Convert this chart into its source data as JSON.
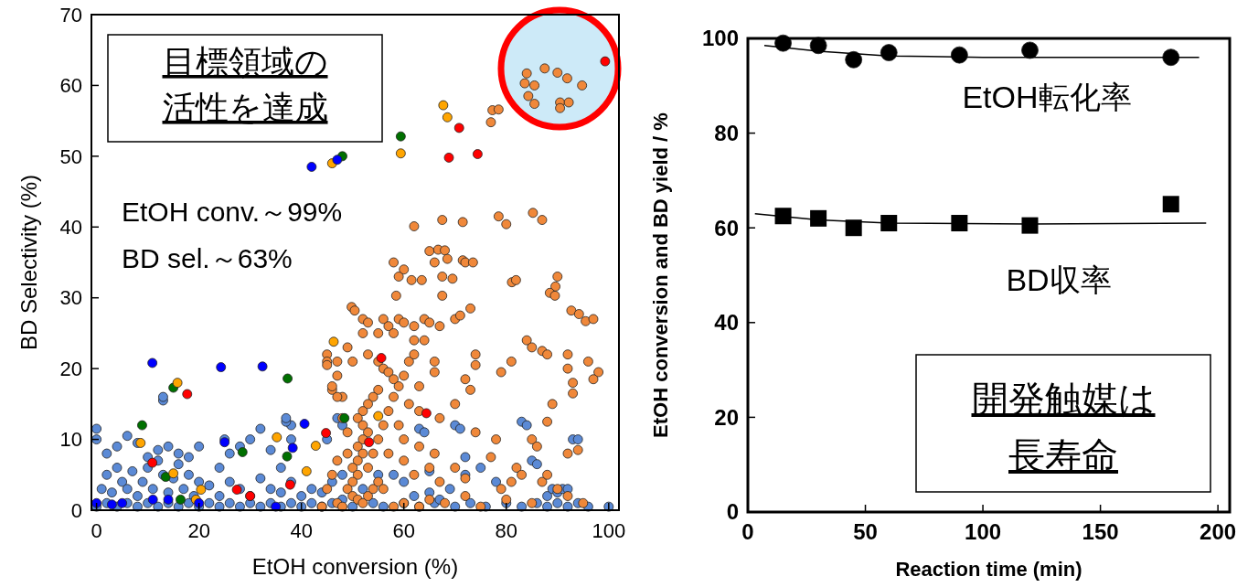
{
  "chart_data": [
    {
      "type": "scatter",
      "xlabel": "EtOH conversion (%)",
      "ylabel": "BD Selectivity (%)",
      "xlim": [
        -1,
        102
      ],
      "ylim": [
        0,
        70
      ],
      "xticks": [
        0,
        20,
        40,
        60,
        80,
        100
      ],
      "yticks": [
        0,
        10,
        20,
        30,
        40,
        50,
        60,
        70
      ],
      "marker": "circle",
      "annotations": [
        "目標領域の活性を達成",
        "EtOH conv.～99%",
        "BD sel.～63%"
      ],
      "series": [
        {
          "color": "#5b8ad6",
          "x": [
            0,
            2,
            4,
            6,
            8,
            10,
            12,
            14,
            16,
            18,
            20,
            22,
            24,
            26,
            28,
            30,
            32,
            34,
            36,
            38,
            40,
            42,
            44,
            46,
            50,
            54,
            56,
            60,
            63,
            66,
            70,
            73,
            76,
            80,
            83,
            86,
            88,
            90,
            92,
            94,
            96,
            100,
            1,
            2,
            3,
            4,
            5,
            6,
            7,
            8,
            9,
            10,
            11,
            12,
            13,
            14,
            15,
            16,
            17,
            18,
            19,
            20,
            2,
            4,
            6,
            8,
            10,
            12,
            14,
            16,
            18,
            20,
            22,
            24,
            26,
            28,
            30,
            32,
            34,
            36,
            38,
            40,
            42,
            24,
            26,
            28,
            30,
            32,
            34,
            38,
            38,
            13,
            13,
            36,
            44,
            46,
            45,
            48,
            47,
            48,
            0,
            0,
            37,
            37,
            25,
            60,
            65,
            69,
            72,
            75,
            78,
            70,
            71,
            72,
            88,
            89,
            90,
            91,
            92,
            85,
            86,
            83,
            84,
            93,
            94,
            63,
            64,
            58,
            62,
            65,
            67,
            55,
            52,
            48
          ],
          "values": [
            0.5,
            1,
            0.5,
            1,
            0.5,
            1,
            0.5,
            1,
            0.5,
            1,
            0.5,
            1,
            0.5,
            1,
            0.5,
            1,
            0.5,
            1,
            0.5,
            1,
            0.5,
            1,
            0.5,
            1,
            0.5,
            1,
            0.5,
            1,
            0.5,
            1,
            0.5,
            1,
            0.5,
            1,
            0.5,
            1,
            0.5,
            1,
            0.5,
            1,
            0.5,
            0.5,
            3,
            5,
            2.5,
            6,
            4,
            3,
            5.5,
            2,
            4,
            6,
            3,
            7,
            5,
            2.5,
            4.5,
            6.5,
            3,
            5,
            2,
            4,
            8,
            9,
            10.5,
            9.5,
            7.5,
            8.5,
            9,
            8,
            7.5,
            9,
            3.5,
            2,
            4,
            3,
            2,
            4.5,
            3,
            2.5,
            4,
            2,
            3,
            6,
            8,
            9,
            10,
            11.5,
            8.5,
            10,
            12,
            15.5,
            16,
            6,
            2.5,
            4,
            10,
            12,
            13,
            1.5,
            11.5,
            10,
            12.5,
            13,
            10,
            4,
            5.5,
            3,
            7.5,
            6,
            4,
            12,
            11.5,
            5,
            2,
            3,
            2.5,
            3,
            3,
            7,
            6.5,
            12.5,
            12,
            10,
            10,
            11.5,
            11,
            5,
            2,
            2.5,
            1.5,
            5,
            3,
            5
          ]
        },
        {
          "color": "#f0883a",
          "x": [
            84,
            87.5,
            90,
            91.9,
            94.8,
            83.6,
            85.5,
            84.3,
            85.5,
            90.5,
            90.5,
            92.2,
            77.3,
            77,
            78.5,
            78.5,
            80,
            85.2,
            87,
            81.1,
            81.9,
            90,
            89.6,
            88.5,
            89.5,
            92.7,
            94.2,
            95.5,
            97,
            49.8,
            50.4,
            62,
            67.5,
            71.5,
            65,
            66.7,
            68,
            71.5,
            58,
            60,
            66,
            68.5,
            72,
            73.5,
            59,
            61.5,
            63.5,
            67.5,
            69.5,
            58.5,
            67.5,
            52,
            53,
            56,
            57,
            59,
            60,
            62,
            64,
            65,
            67,
            70,
            71,
            73,
            52,
            55,
            58,
            62,
            49,
            50,
            53,
            55,
            56,
            57,
            58,
            59,
            55,
            54,
            53,
            52,
            51,
            52,
            53,
            52,
            51,
            52,
            51,
            50,
            51,
            50,
            49,
            50,
            51,
            52,
            53,
            54,
            55,
            56,
            53,
            54,
            55,
            56,
            57,
            58,
            60,
            61,
            62,
            64,
            47,
            47,
            46,
            48,
            48,
            49,
            49,
            47,
            46,
            45,
            47,
            44,
            48,
            58,
            60,
            63,
            65,
            66,
            63,
            66,
            72,
            73,
            70,
            74,
            74,
            79,
            81,
            84,
            85,
            87,
            88,
            92,
            92,
            93,
            93,
            89,
            96,
            98,
            97,
            88,
            78,
            77,
            70,
            72,
            66,
            63,
            60,
            59,
            63,
            61,
            67,
            74,
            85,
            86,
            92,
            94,
            82,
            83,
            81,
            79,
            87,
            88,
            90,
            72,
            68,
            75,
            80,
            85,
            92,
            95,
            62,
            65,
            67,
            60,
            57,
            45,
            45,
            45,
            46,
            47
          ],
          "values": [
            61.7,
            62.4,
            61.8,
            61,
            60,
            60.3,
            60,
            58.5,
            57.4,
            57.6,
            56.8,
            57.6,
            56.5,
            54.8,
            56.6,
            41.5,
            40.4,
            42,
            41,
            32.2,
            32.5,
            33,
            31.6,
            30.7,
            30.3,
            28.2,
            27.7,
            26.7,
            27,
            28.7,
            28.2,
            40.1,
            41,
            40.7,
            36.6,
            36.8,
            36.7,
            35.3,
            35,
            34,
            35,
            35.5,
            35,
            35,
            33,
            32.5,
            32.5,
            33,
            32.7,
            30.3,
            30.3,
            27,
            26.5,
            27,
            26,
            27,
            26.5,
            26,
            27,
            26.5,
            26,
            27,
            27.5,
            28.5,
            25,
            25,
            25,
            24,
            23,
            21,
            22,
            21,
            20,
            19.5,
            18.5,
            17.5,
            17,
            16,
            15,
            14,
            13,
            12,
            11,
            10,
            9,
            8,
            7,
            6,
            5,
            4,
            3,
            2,
            1.5,
            1,
            2,
            3,
            4,
            3,
            6,
            8,
            10,
            12,
            14,
            16,
            19,
            21,
            22,
            24,
            21,
            19,
            17,
            16,
            13,
            11,
            8,
            7,
            5,
            3,
            1,
            0.5,
            0.5,
            0.5,
            1,
            0.5,
            1.5,
            21,
            17.5,
            19.5,
            18.5,
            17,
            15,
            22,
            20.5,
            19.5,
            21,
            24,
            23,
            22.5,
            22,
            22,
            20,
            18,
            16.5,
            15,
            21,
            19.5,
            18.5,
            12.5,
            10,
            7.5,
            6,
            4.5,
            8,
            9,
            10,
            12,
            14,
            15,
            13,
            11,
            10,
            9,
            8,
            8.5,
            6,
            5,
            4,
            3,
            4,
            5,
            3,
            2,
            1,
            0.5,
            1.5,
            1,
            2,
            1,
            5,
            6,
            4,
            7,
            8,
            22,
            21,
            20.5,
            17.5,
            16
          ]
        },
        {
          "color": "#ff0000",
          "x": [
            17.7,
            44.8,
            10.9,
            27.4,
            37.8,
            30,
            55.6,
            64.4,
            53.2,
            70.8,
            68.8,
            74.4,
            99.3
          ],
          "values": [
            16.4,
            10.9,
            6.7,
            2.9,
            3.6,
            2,
            21.5,
            13.7,
            9.6,
            54,
            49.8,
            50.3,
            63.4
          ]
        },
        {
          "color": "#007000",
          "x": [
            37.3,
            15,
            8.9,
            48.4,
            28.5,
            37.2,
            13.5,
            16.4,
            59.4,
            48
          ],
          "values": [
            18.6,
            17.3,
            12,
            13,
            8.2,
            7.6,
            4.7,
            1.5,
            52.8,
            50
          ]
        },
        {
          "color": "#ffa500",
          "x": [
            15.8,
            8.6,
            35.2,
            42.8,
            15,
            20.4,
            19.4,
            46,
            67.7,
            68.5,
            59.4,
            46.3,
            41,
            55
          ],
          "values": [
            18,
            9.5,
            10.3,
            9.1,
            5.2,
            2.9,
            1.5,
            49,
            57.2,
            55.5,
            50.4,
            23.8,
            5.5,
            13.3
          ]
        },
        {
          "color": "#0000ff",
          "x": [
            10.9,
            24.3,
            32.4,
            40.6,
            25,
            38.3,
            0,
            3,
            5,
            11,
            14,
            20,
            35,
            47,
            42
          ],
          "values": [
            20.8,
            20.2,
            20.3,
            12.2,
            9.6,
            8.8,
            1,
            0.8,
            1,
            1.5,
            1.5,
            1,
            0.5,
            49.5,
            48.5
          ]
        }
      ]
    },
    {
      "type": "scatter",
      "xlabel": "Reaction time (min)",
      "ylabel": "EtOH conversion and BD yield / %",
      "xlim": [
        0,
        205
      ],
      "ylim": [
        0,
        100
      ],
      "xticks": [
        0,
        50,
        100,
        150,
        200
      ],
      "yticks": [
        0,
        20,
        40,
        60,
        80,
        100
      ],
      "annotations": [
        "開発触媒は長寿命"
      ],
      "series": [
        {
          "name": "EtOH転化率",
          "marker": "circle",
          "color": "#000000",
          "x": [
            15,
            30,
            45,
            60,
            90,
            120,
            180
          ],
          "values": [
            99,
            98.5,
            95.5,
            97,
            96.5,
            97.5,
            96
          ]
        },
        {
          "type": "line",
          "marker": "none",
          "color": "#000000",
          "x": [
            7,
            30,
            60,
            100,
            192
          ],
          "values": [
            98.5,
            97.3,
            96.3,
            96,
            96
          ]
        },
        {
          "name": "BD収率",
          "marker": "square",
          "color": "#000000",
          "x": [
            15,
            30,
            45,
            60,
            90,
            120,
            180
          ],
          "values": [
            62.5,
            62,
            60,
            61,
            61,
            60.5,
            65
          ]
        },
        {
          "type": "line",
          "marker": "none",
          "color": "#000000",
          "x": [
            3,
            30,
            60,
            120,
            195
          ],
          "values": [
            63,
            61.7,
            61,
            60.8,
            61
          ]
        }
      ]
    }
  ]
}
